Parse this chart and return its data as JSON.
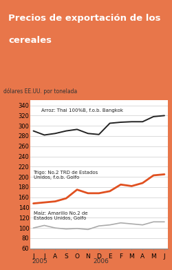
{
  "title_line1": "Precios de exportación de los",
  "title_line2": "cereales",
  "title_bg": "#E8764A",
  "title_color": "#ffffff",
  "ylabel": "dólares EE.UU. por tonelada",
  "ylim": [
    60,
    350
  ],
  "yticks": [
    60,
    80,
    100,
    120,
    140,
    160,
    180,
    200,
    220,
    240,
    260,
    280,
    300,
    320,
    340
  ],
  "xlabel_2005": "2005",
  "xlabel_2006": "2006",
  "x_labels": [
    "J",
    "J",
    "A",
    "S",
    "O",
    "N",
    "D",
    "E",
    "F",
    "M",
    "A",
    "M",
    "J"
  ],
  "rice_label": "Arroz: Thai 100%B, f.o.b. Bangkok",
  "wheat_label": "Trigo: No.2 TRD de Estados\nUnidos, f.o.b. Golfo",
  "corn_label": "Maíz: Amarillo No.2 de\nEstados Unidos, Golfo",
  "rice_color": "#222222",
  "wheat_color": "#e05020",
  "corn_color": "#aaaaaa",
  "rice_data": [
    290,
    282,
    285,
    290,
    293,
    285,
    283,
    305,
    307,
    308,
    308,
    318,
    320
  ],
  "wheat_data": [
    148,
    150,
    152,
    158,
    175,
    168,
    168,
    172,
    185,
    182,
    188,
    203,
    205
  ],
  "corn_data": [
    100,
    105,
    100,
    98,
    99,
    97,
    104,
    106,
    110,
    108,
    106,
    112,
    112
  ],
  "bg_white": "#ffffff",
  "grid_color": "#cccccc",
  "border_color": "#c0392b"
}
